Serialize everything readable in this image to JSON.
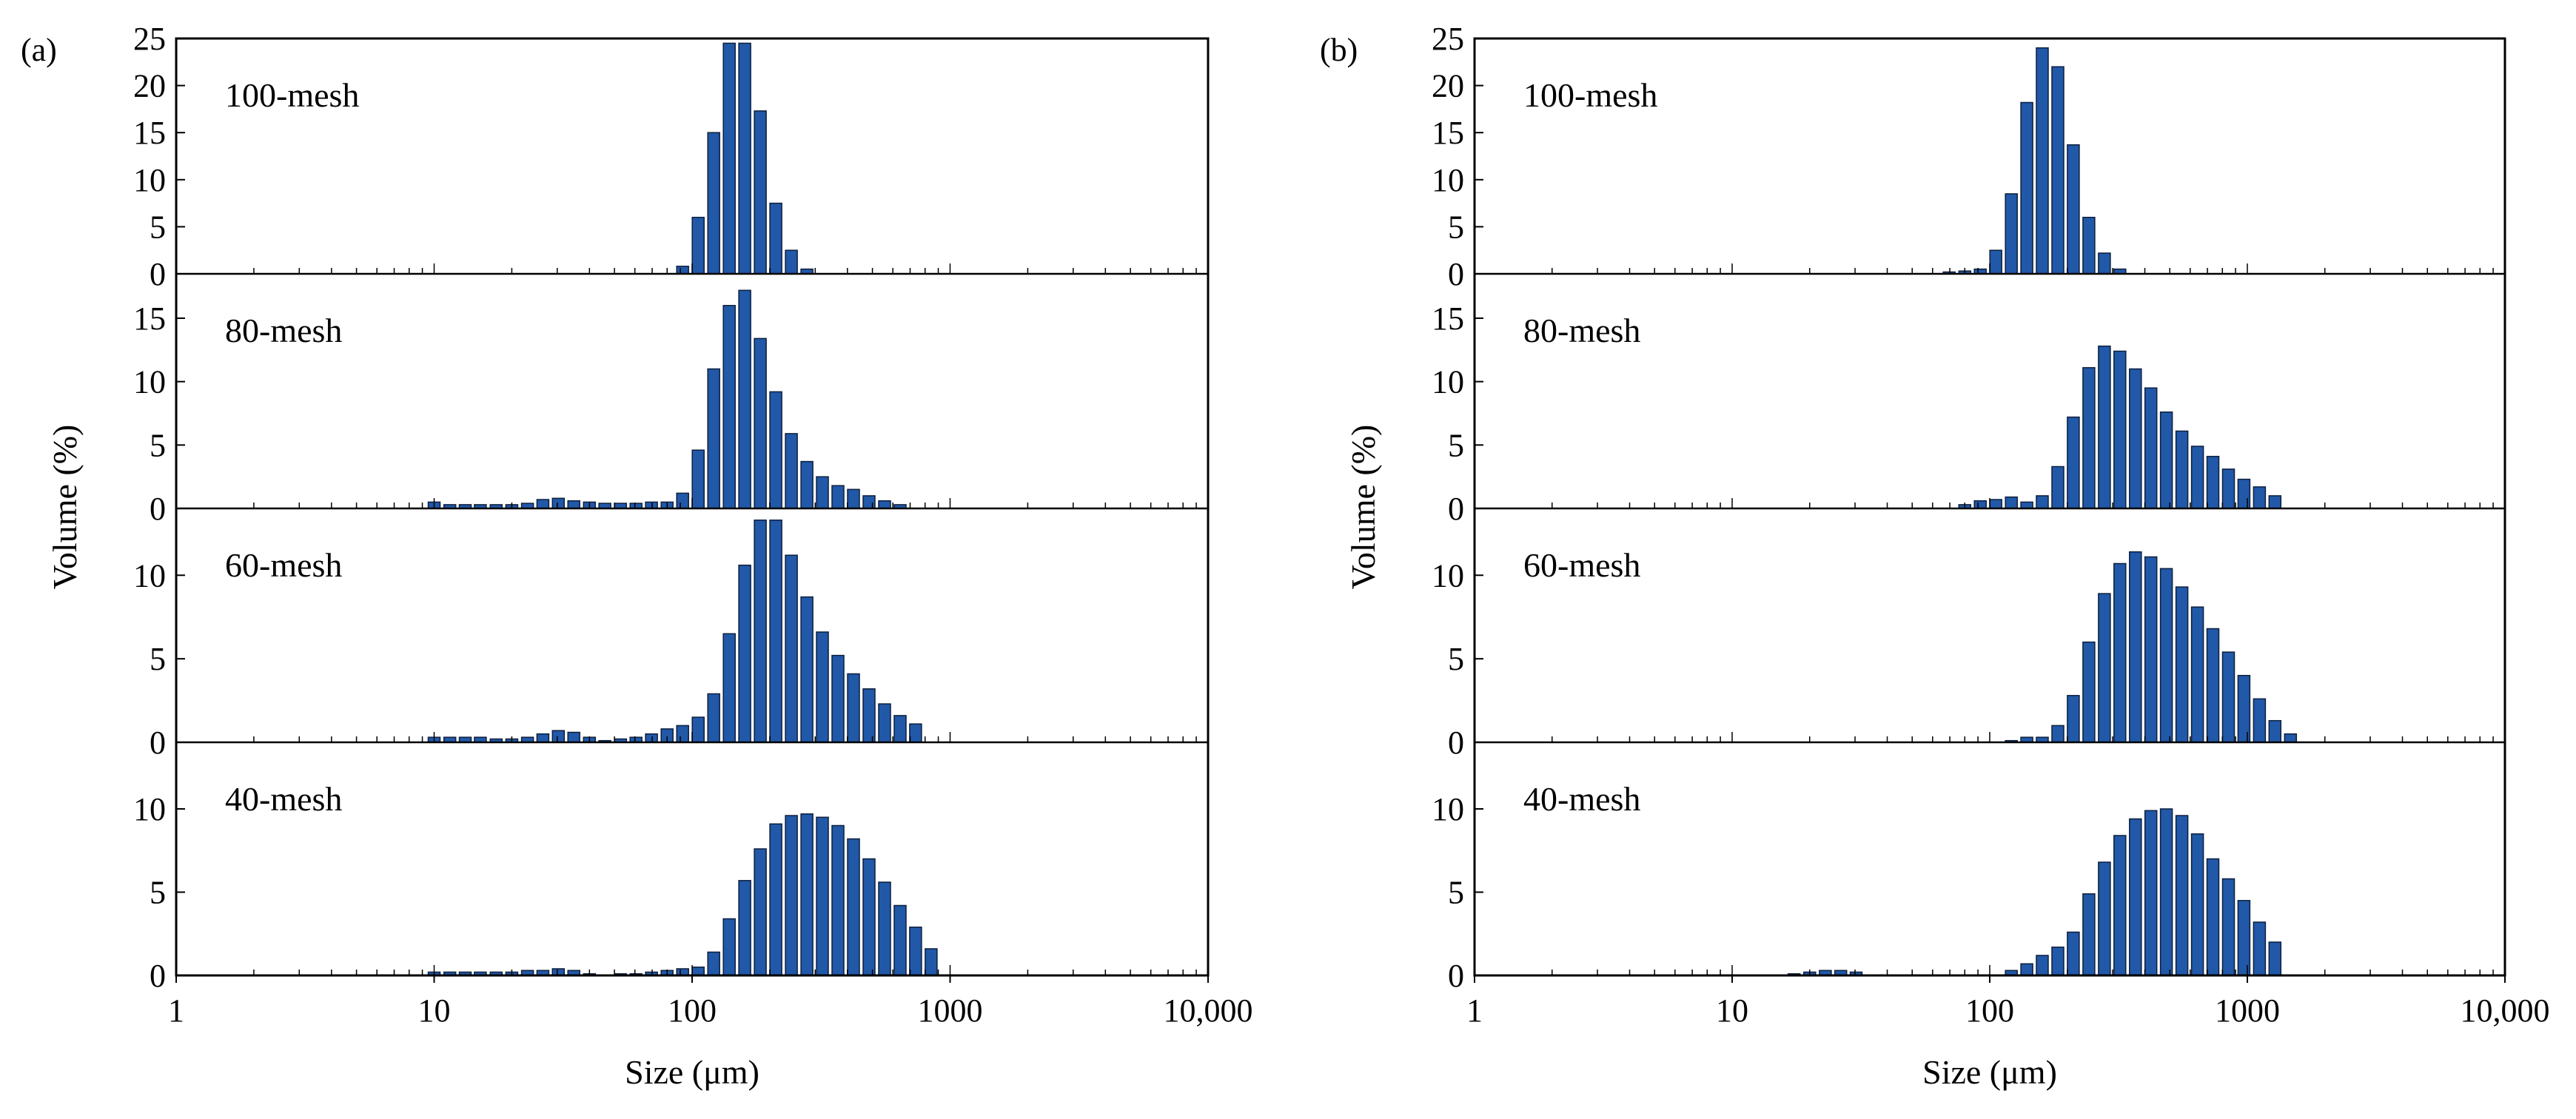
{
  "chart_data": [
    {
      "id": "a",
      "type": "bar",
      "panel_label": "(a)",
      "xlabel": "Size (μm)",
      "ylabel": "Volume (%)",
      "x_scale": "log",
      "xlim": [
        1,
        10000
      ],
      "x_ticks": [
        {
          "value": 1,
          "label": "1"
        },
        {
          "value": 10,
          "label": "10"
        },
        {
          "value": 100,
          "label": "100"
        },
        {
          "value": 1000,
          "label": "1000"
        },
        {
          "value": 10000,
          "label": "10,000"
        }
      ],
      "bin_sizes_um": [
        10,
        11.5,
        13.2,
        15.1,
        17.4,
        20,
        23,
        26.4,
        30.3,
        34.8,
        40,
        45.9,
        52.8,
        60.6,
        69.6,
        80,
        91.9,
        105.6,
        121.3,
        139.3,
        160,
        183.8,
        211.1,
        242.5,
        278.6,
        320,
        367.6,
        422.2,
        485,
        557.2,
        640,
        735.2,
        844.5,
        970.1,
        1114.3,
        1280,
        1470.3,
        1688.9,
        1940.1,
        2228.6
      ],
      "series": [
        {
          "name": "100-mesh",
          "ylim": [
            0,
            25
          ],
          "y_ticks": [
            0,
            5,
            10,
            15,
            20,
            25
          ],
          "values": [
            0,
            0,
            0,
            0,
            0,
            0,
            0,
            0,
            0,
            0,
            0,
            0,
            0,
            0,
            0,
            0,
            0.8,
            6,
            15,
            24.5,
            24.5,
            17.3,
            7.5,
            2.5,
            0.5,
            0,
            0,
            0,
            0,
            0,
            0,
            0,
            0,
            0,
            0,
            0,
            0,
            0,
            0,
            0
          ]
        },
        {
          "name": "80-mesh",
          "ylim": [
            0,
            18.5
          ],
          "y_ticks": [
            0,
            5,
            10,
            15
          ],
          "values": [
            0.5,
            0.3,
            0.3,
            0.3,
            0.3,
            0.3,
            0.4,
            0.7,
            0.8,
            0.6,
            0.5,
            0.4,
            0.4,
            0.4,
            0.5,
            0.5,
            1.2,
            4.6,
            11,
            16,
            17.2,
            13.4,
            9.2,
            5.9,
            3.7,
            2.5,
            1.8,
            1.5,
            1,
            0.6,
            0.3,
            0,
            0,
            0,
            0,
            0,
            0,
            0,
            0,
            0
          ]
        },
        {
          "name": "60-mesh",
          "ylim": [
            0,
            14
          ],
          "y_ticks": [
            0,
            5,
            10
          ],
          "values": [
            0.3,
            0.3,
            0.3,
            0.3,
            0.2,
            0.2,
            0.3,
            0.5,
            0.7,
            0.6,
            0.3,
            0.1,
            0.2,
            0.3,
            0.5,
            0.8,
            1,
            1.5,
            2.9,
            6.5,
            10.6,
            13.3,
            13.3,
            11.2,
            8.7,
            6.6,
            5.2,
            4.1,
            3.2,
            2.3,
            1.6,
            1.1,
            0,
            0,
            0,
            0,
            0,
            0,
            0,
            0
          ]
        },
        {
          "name": "40-mesh",
          "ylim": [
            0,
            14
          ],
          "y_ticks": [
            0,
            5,
            10
          ],
          "values": [
            0.2,
            0.2,
            0.2,
            0.2,
            0.2,
            0.2,
            0.3,
            0.3,
            0.4,
            0.3,
            0.1,
            0,
            0.1,
            0.1,
            0.2,
            0.3,
            0.4,
            0.5,
            1.4,
            3.4,
            5.7,
            7.6,
            9.1,
            9.6,
            9.7,
            9.5,
            9,
            8.2,
            7,
            5.6,
            4.2,
            2.9,
            1.6,
            0,
            0,
            0,
            0,
            0,
            0,
            0
          ]
        }
      ]
    },
    {
      "id": "b",
      "type": "bar",
      "panel_label": "(b)",
      "xlabel": "Size (μm)",
      "ylabel": "Volume (%)",
      "x_scale": "log",
      "xlim": [
        1,
        10000
      ],
      "x_ticks": [
        {
          "value": 1,
          "label": "1"
        },
        {
          "value": 10,
          "label": "10"
        },
        {
          "value": 100,
          "label": "100"
        },
        {
          "value": 1000,
          "label": "1000"
        },
        {
          "value": 10000,
          "label": "10,000"
        }
      ],
      "bin_sizes_um": [
        10,
        11.5,
        13.2,
        15.1,
        17.4,
        20,
        23,
        26.4,
        30.3,
        34.8,
        40,
        45.9,
        52.8,
        60.6,
        69.6,
        80,
        91.9,
        105.6,
        121.3,
        139.3,
        160,
        183.8,
        211.1,
        242.5,
        278.6,
        320,
        367.6,
        422.2,
        485,
        557.2,
        640,
        735.2,
        844.5,
        970.1,
        1114.3,
        1280,
        1470.3,
        1688.9,
        1940.1,
        2228.6
      ],
      "series": [
        {
          "name": "100-mesh",
          "ylim": [
            0,
            25
          ],
          "y_ticks": [
            0,
            5,
            10,
            15,
            20,
            25
          ],
          "values": [
            0,
            0,
            0,
            0,
            0,
            0,
            0,
            0,
            0,
            0,
            0,
            0,
            0,
            0,
            0.2,
            0.3,
            0.5,
            2.5,
            8.5,
            18.2,
            24,
            22,
            13.7,
            6,
            2.2,
            0.5,
            0,
            0,
            0,
            0,
            0,
            0,
            0,
            0,
            0,
            0,
            0,
            0,
            0,
            0
          ]
        },
        {
          "name": "80-mesh",
          "ylim": [
            0,
            18.5
          ],
          "y_ticks": [
            0,
            5,
            10,
            15
          ],
          "values": [
            0,
            0,
            0,
            0,
            0,
            0,
            0,
            0,
            0,
            0,
            0,
            0,
            0,
            0,
            0,
            0.3,
            0.6,
            0.7,
            0.9,
            0.5,
            1,
            3.3,
            7.2,
            11.1,
            12.8,
            12.4,
            11,
            9.5,
            7.6,
            6.1,
            4.9,
            4.1,
            3.1,
            2.3,
            1.7,
            1,
            0,
            0,
            0,
            0
          ]
        },
        {
          "name": "60-mesh",
          "ylim": [
            0,
            14
          ],
          "y_ticks": [
            0,
            5,
            10
          ],
          "values": [
            0,
            0,
            0,
            0,
            0,
            0,
            0,
            0,
            0,
            0,
            0,
            0,
            0,
            0,
            0,
            0,
            0,
            0,
            0.1,
            0.3,
            0.3,
            1,
            2.8,
            6,
            8.9,
            10.7,
            11.4,
            11.1,
            10.4,
            9.3,
            8.1,
            6.8,
            5.4,
            4,
            2.6,
            1.3,
            0.5,
            0,
            0,
            0
          ]
        },
        {
          "name": "40-mesh",
          "ylim": [
            0,
            14
          ],
          "y_ticks": [
            0,
            5,
            10
          ],
          "values": [
            0,
            0,
            0,
            0,
            0.1,
            0.2,
            0.3,
            0.3,
            0.2,
            0,
            0,
            0,
            0,
            0,
            0,
            0,
            0,
            0,
            0.3,
            0.7,
            1.2,
            1.7,
            2.6,
            4.9,
            6.8,
            8.4,
            9.4,
            9.9,
            10,
            9.6,
            8.5,
            7,
            5.8,
            4.5,
            3.2,
            2,
            0,
            0,
            0,
            0
          ]
        }
      ]
    }
  ]
}
